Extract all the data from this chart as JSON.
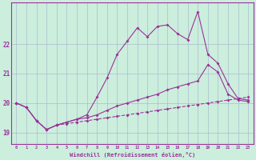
{
  "xlabel": "Windchill (Refroidissement éolien,°C)",
  "background_color": "#cceedd",
  "grid_color": "#aabbcc",
  "line_color": "#993399",
  "x_ticks": [
    0,
    1,
    2,
    3,
    4,
    5,
    6,
    7,
    8,
    9,
    10,
    11,
    12,
    13,
    14,
    15,
    16,
    17,
    18,
    19,
    20,
    21,
    22,
    23
  ],
  "xlim": [
    -0.5,
    23.5
  ],
  "ylim": [
    18.6,
    23.4
  ],
  "yticks": [
    19,
    20,
    21,
    22
  ],
  "series": {
    "line1_bottom": [
      20.0,
      19.85,
      19.4,
      19.1,
      19.25,
      19.3,
      19.35,
      19.4,
      19.45,
      19.5,
      19.55,
      19.6,
      19.65,
      19.7,
      19.75,
      19.8,
      19.85,
      19.9,
      19.95,
      20.0,
      20.05,
      20.1,
      20.15,
      20.2
    ],
    "line2_mid": [
      20.0,
      19.85,
      19.4,
      19.1,
      19.25,
      19.35,
      19.45,
      19.5,
      19.6,
      19.75,
      19.9,
      20.0,
      20.1,
      20.2,
      20.3,
      20.45,
      20.55,
      20.65,
      20.75,
      21.3,
      21.05,
      20.3,
      20.1,
      20.05
    ],
    "line3_top": [
      20.0,
      19.85,
      19.4,
      19.1,
      19.25,
      19.35,
      19.45,
      19.6,
      20.2,
      20.85,
      21.65,
      22.1,
      22.55,
      22.25,
      22.6,
      22.65,
      22.35,
      22.15,
      23.1,
      21.65,
      21.35,
      20.65,
      20.15,
      20.1
    ]
  }
}
